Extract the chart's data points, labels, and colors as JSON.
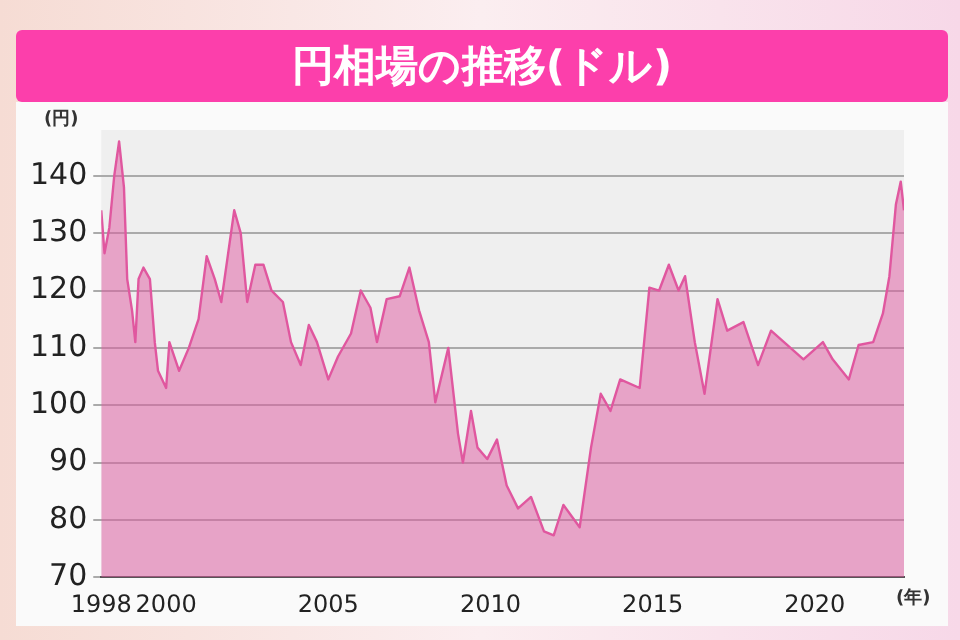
{
  "chart_data": {
    "type": "area",
    "title": "円相場の推移(ドル)",
    "xlabel": "(年)",
    "ylabel": "(円)",
    "x": [
      1998.0,
      1998.1,
      1998.25,
      1998.4,
      1998.55,
      1998.7,
      1998.8,
      1998.95,
      1999.05,
      1999.15,
      1999.3,
      1999.5,
      1999.65,
      1999.75,
      2000.0,
      2000.1,
      2000.4,
      2000.7,
      2001.0,
      2001.25,
      2001.5,
      2001.7,
      2001.9,
      2002.1,
      2002.3,
      2002.5,
      2002.75,
      2003.0,
      2003.25,
      2003.6,
      2003.85,
      2004.15,
      2004.4,
      2004.65,
      2005.0,
      2005.3,
      2005.7,
      2006.0,
      2006.3,
      2006.5,
      2006.8,
      2007.2,
      2007.5,
      2007.8,
      2008.1,
      2008.3,
      2008.7,
      2009.0,
      2009.15,
      2009.4,
      2009.6,
      2009.9,
      2010.2,
      2010.5,
      2010.85,
      2011.25,
      2011.65,
      2011.95,
      2012.25,
      2012.75,
      2013.1,
      2013.4,
      2013.7,
      2014.0,
      2014.6,
      2014.9,
      2015.2,
      2015.5,
      2015.8,
      2016.0,
      2016.3,
      2016.6,
      2017.0,
      2017.3,
      2017.8,
      2018.25,
      2018.65,
      2019.05,
      2019.65,
      2020.25,
      2020.55,
      2021.05,
      2021.35,
      2021.8,
      2022.1,
      2022.3,
      2022.5,
      2022.65,
      2022.75
    ],
    "series": [
      {
        "color": "#e0579f",
        "values": [
          134,
          126.5,
          131,
          140,
          146,
          138,
          122,
          116.5,
          111,
          122,
          124,
          122,
          111,
          106,
          103,
          111,
          106,
          110,
          115,
          126,
          122,
          118,
          126,
          134,
          130,
          118,
          124.5,
          124.5,
          120,
          118,
          111,
          107,
          114,
          111,
          104.5,
          108.5,
          112.5,
          120,
          117,
          111,
          118.5,
          119,
          124,
          116.5,
          111,
          100.5,
          110,
          95,
          90,
          99,
          92.6,
          90.6,
          94,
          86,
          82,
          84,
          78,
          77.3,
          82.6,
          78.7,
          92.6,
          102,
          99,
          104.5,
          103,
          120.5,
          120,
          124.5,
          120,
          122.5,
          111,
          102,
          118.5,
          113,
          114.5,
          107,
          113,
          111,
          108,
          111,
          108,
          104.5,
          110.5,
          111,
          116,
          122.5,
          135,
          139,
          134
        ]
      }
    ],
    "xlim": [
      1998,
      2022.75
    ],
    "xticks": [
      1998,
      2000,
      2005,
      2010,
      2015,
      2020
    ],
    "ylim": [
      70,
      148
    ],
    "yticks": [
      70,
      80,
      90,
      100,
      110,
      120,
      130,
      140
    ],
    "grid": "y",
    "legend": false,
    "marker": "none",
    "line_style": "solid"
  }
}
